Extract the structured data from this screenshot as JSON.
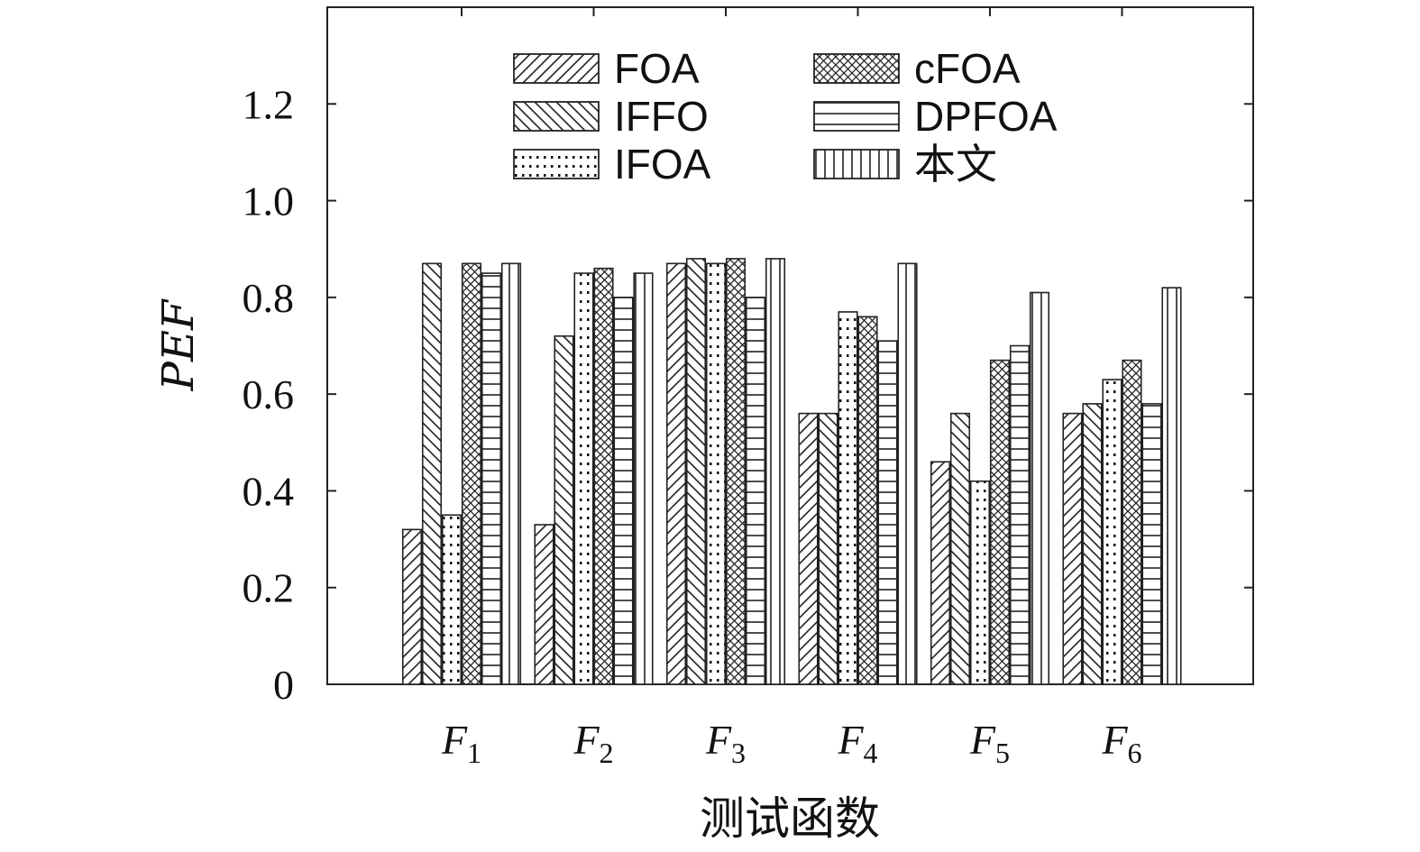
{
  "chart_data": {
    "type": "bar",
    "categories": [
      "F1",
      "F2",
      "F3",
      "F4",
      "F5",
      "F6"
    ],
    "category_labels": [
      {
        "main": "F",
        "sub": "1"
      },
      {
        "main": "F",
        "sub": "2"
      },
      {
        "main": "F",
        "sub": "3"
      },
      {
        "main": "F",
        "sub": "4"
      },
      {
        "main": "F",
        "sub": "5"
      },
      {
        "main": "F",
        "sub": "6"
      }
    ],
    "series": [
      {
        "name": "FOA",
        "pattern": "diag-right",
        "values": [
          0.32,
          0.33,
          0.87,
          0.56,
          0.46,
          0.56
        ]
      },
      {
        "name": "IFFO",
        "pattern": "diag-left",
        "values": [
          0.87,
          0.72,
          0.88,
          0.56,
          0.56,
          0.58
        ]
      },
      {
        "name": "IFOA",
        "pattern": "dots",
        "values": [
          0.35,
          0.85,
          0.87,
          0.77,
          0.42,
          0.63
        ]
      },
      {
        "name": "cFOA",
        "pattern": "crosshatch",
        "values": [
          0.87,
          0.86,
          0.88,
          0.76,
          0.67,
          0.67
        ]
      },
      {
        "name": "DPFOA",
        "pattern": "horizontal",
        "values": [
          0.85,
          0.8,
          0.8,
          0.71,
          0.7,
          0.58
        ]
      },
      {
        "name": "本文",
        "pattern": "vertical",
        "values": [
          0.87,
          0.85,
          0.88,
          0.87,
          0.81,
          0.82
        ]
      }
    ],
    "ylabel": "PEF",
    "xlabel": "测试函数",
    "ylim": [
      0,
      1.4
    ],
    "yticks": [
      0,
      0.2,
      0.4,
      0.6,
      0.8,
      1.0,
      1.2
    ],
    "ytick_labels": [
      "0",
      "0.2",
      "0.4",
      "0.6",
      "0.8",
      "1.0",
      "1.2"
    ],
    "grid": false,
    "legend_position": "top-center"
  }
}
